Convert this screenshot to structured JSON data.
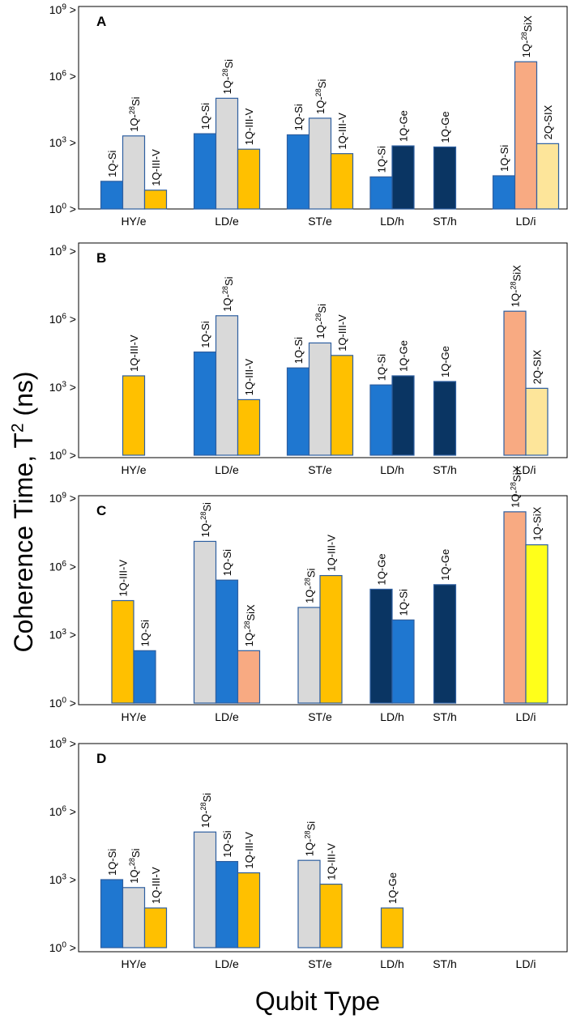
{
  "chart_data": {
    "type": "bar",
    "scale": "log10",
    "y_axis_label": "Coherence Time, T",
    "y_axis_label_sup": "2",
    "y_axis_label_unit": " (ns)",
    "x_axis_label": "Qubit Type",
    "ylim_exponents": [
      0,
      9
    ],
    "y_ticks": [
      {
        "base": "10",
        "exp": "0",
        "value": 1
      },
      {
        "base": "10",
        "exp": "3",
        "value": 1000
      },
      {
        "base": "10",
        "exp": "6",
        "value": 1000000
      },
      {
        "base": "10",
        "exp": "9",
        "value": 1000000000
      }
    ],
    "tick_marker": ">",
    "categories": [
      "HY/e",
      "LD/e",
      "ST/e",
      "LD/h",
      "ST/h",
      "LD/i"
    ],
    "colors": {
      "si": "#1f77d0",
      "si28": "#d9d9d9",
      "iii_v": "#ffc000",
      "ge": "#0a3563",
      "six28": "#f8aa82",
      "six2q": "#fde59a",
      "six": "#ffff1a"
    },
    "panels": [
      {
        "label": "A",
        "groups": [
          {
            "category": "HY/e",
            "bars": [
              {
                "label": "1Q-Si",
                "value_log10": 1.25,
                "color": "si"
              },
              {
                "label": "1Q-<sup>28</sup>Si",
                "value_log10": 3.3,
                "color": "si28"
              },
              {
                "label": "1Q-III-V",
                "value_log10": 0.85,
                "color": "iii_v"
              }
            ]
          },
          {
            "category": "LD/e",
            "bars": [
              {
                "label": "1Q-Si",
                "value_log10": 3.4,
                "color": "si"
              },
              {
                "label": "1Q-<sup>28</sup>Si",
                "value_log10": 5.0,
                "color": "si28"
              },
              {
                "label": "1Q-III-V",
                "value_log10": 2.7,
                "color": "iii_v"
              }
            ]
          },
          {
            "category": "ST/e",
            "bars": [
              {
                "label": "1Q-Si",
                "value_log10": 3.35,
                "color": "si"
              },
              {
                "label": "1Q-<sup>28</sup>Si",
                "value_log10": 4.1,
                "color": "si28"
              },
              {
                "label": "1Q-III-V",
                "value_log10": 2.5,
                "color": "iii_v"
              }
            ]
          },
          {
            "category": "LD/h",
            "bars": [
              {
                "label": "1Q-Si",
                "value_log10": 1.45,
                "color": "si"
              },
              {
                "label": "1Q-Ge",
                "value_log10": 2.85,
                "color": "ge"
              }
            ]
          },
          {
            "category": "ST/h",
            "bars": [
              {
                "label": "1Q-Ge",
                "value_log10": 2.8,
                "color": "ge"
              }
            ]
          },
          {
            "category": "LD/i",
            "bars": [
              {
                "label": "1Q-Si",
                "value_log10": 1.5,
                "color": "si"
              },
              {
                "label": "1Q-<sup>28</sup>SiX",
                "value_log10": 6.65,
                "color": "six28"
              },
              {
                "label": "2Q-SIX",
                "value_log10": 2.95,
                "color": "six2q"
              }
            ]
          }
        ]
      },
      {
        "label": "B",
        "groups": [
          {
            "category": "HY/e",
            "bars": [
              {
                "label": "1Q-III-V",
                "value_log10": 3.5,
                "color": "iii_v"
              }
            ]
          },
          {
            "category": "LD/e",
            "bars": [
              {
                "label": "1Q-Si",
                "value_log10": 4.55,
                "color": "si"
              },
              {
                "label": "1Q-<sup>28</sup>Si",
                "value_log10": 6.15,
                "color": "si28"
              },
              {
                "label": "1Q-III-V",
                "value_log10": 2.45,
                "color": "iii_v"
              }
            ]
          },
          {
            "category": "ST/e",
            "bars": [
              {
                "label": "1Q-Si",
                "value_log10": 3.85,
                "color": "si"
              },
              {
                "label": "1Q-<sup>28</sup>Si",
                "value_log10": 4.95,
                "color": "si28"
              },
              {
                "label": "1Q-III-V",
                "value_log10": 4.4,
                "color": "iii_v"
              }
            ]
          },
          {
            "category": "LD/h",
            "bars": [
              {
                "label": "1Q-Si",
                "value_log10": 3.1,
                "color": "si"
              },
              {
                "label": "1Q-Ge",
                "value_log10": 3.5,
                "color": "ge"
              }
            ]
          },
          {
            "category": "ST/h",
            "bars": [
              {
                "label": "1Q-Ge",
                "value_log10": 3.25,
                "color": "ge"
              }
            ]
          },
          {
            "category": "LD/i",
            "bars": [
              {
                "label": "1Q-<sup>28</sup>SiX",
                "value_log10": 6.35,
                "color": "six28"
              },
              {
                "label": "2Q-SIX",
                "value_log10": 2.95,
                "color": "six2q"
              }
            ]
          }
        ]
      },
      {
        "label": "C",
        "groups": [
          {
            "category": "HY/e",
            "bars": [
              {
                "label": "1Q-III-V",
                "value_log10": 4.5,
                "color": "iii_v"
              },
              {
                "label": "1Q-Si",
                "value_log10": 2.3,
                "color": "si"
              }
            ]
          },
          {
            "category": "LD/e",
            "bars": [
              {
                "label": "1Q-<sup>28</sup>Si",
                "value_log10": 7.1,
                "color": "si28"
              },
              {
                "label": "1Q-Si",
                "value_log10": 5.4,
                "color": "si"
              },
              {
                "label": "1Q-<sup>28</sup>SiX",
                "value_log10": 2.3,
                "color": "six28"
              }
            ]
          },
          {
            "category": "ST/e",
            "bars": [
              {
                "label": "1Q-<sup>28</sup>Si",
                "value_log10": 4.2,
                "color": "si28"
              },
              {
                "label": "1Q-III-V",
                "value_log10": 5.6,
                "color": "iii_v"
              }
            ]
          },
          {
            "category": "LD/h",
            "bars": [
              {
                "label": "1Q-Ge",
                "value_log10": 5.0,
                "color": "ge"
              },
              {
                "label": "1Q-Si",
                "value_log10": 3.65,
                "color": "si"
              }
            ]
          },
          {
            "category": "ST/h",
            "bars": [
              {
                "label": "1Q-Ge",
                "value_log10": 5.2,
                "color": "ge"
              }
            ]
          },
          {
            "category": "LD/i",
            "bars": [
              {
                "label": "1Q-<sup>28</sup>SiX",
                "value_log10": 8.4,
                "color": "six28"
              },
              {
                "label": "1Q-SiX",
                "value_log10": 6.95,
                "color": "six"
              }
            ]
          }
        ]
      },
      {
        "label": "D",
        "groups": [
          {
            "category": "HY/e",
            "bars": [
              {
                "label": "1Q-Si",
                "value_log10": 3.0,
                "color": "si"
              },
              {
                "label": "1Q-<sup>28</sup>Si",
                "value_log10": 2.65,
                "color": "si28"
              },
              {
                "label": "1Q-III-V",
                "value_log10": 1.75,
                "color": "iii_v"
              }
            ]
          },
          {
            "category": "LD/e",
            "bars": [
              {
                "label": "1Q-<sup>28</sup>Si",
                "value_log10": 5.1,
                "color": "si28"
              },
              {
                "label": "1Q-Si",
                "value_log10": 3.8,
                "color": "si"
              },
              {
                "label": "1Q-III-V",
                "value_log10": 3.3,
                "color": "iii_v"
              }
            ]
          },
          {
            "category": "ST/e",
            "bars": [
              {
                "label": "1Q-<sup>28</sup>Si",
                "value_log10": 3.85,
                "color": "si28"
              },
              {
                "label": "1Q-III-V",
                "value_log10": 2.8,
                "color": "iii_v"
              }
            ]
          },
          {
            "category": "LD/h",
            "bars": [
              {
                "label": "1Q-Ge",
                "value_log10": 1.75,
                "color": "iii_v"
              }
            ]
          },
          {
            "category": "ST/h",
            "bars": []
          },
          {
            "category": "LD/i",
            "bars": []
          }
        ]
      }
    ]
  }
}
